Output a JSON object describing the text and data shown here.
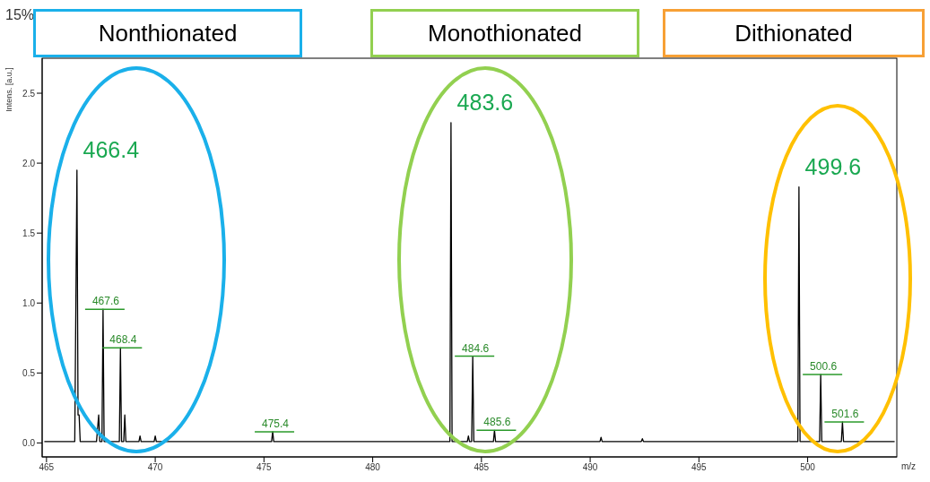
{
  "chart_data": {
    "type": "line",
    "xlabel": "m/z",
    "ylabel": "Intens. [a.u.]",
    "x": [
      464.9,
      466.3,
      466.4,
      466.45,
      466.5,
      466.55,
      467.3,
      467.4,
      467.45,
      467.55,
      467.6,
      467.65,
      468.35,
      468.4,
      468.45,
      468.55,
      468.6,
      468.65,
      469.25,
      469.3,
      469.35,
      469.95,
      470.0,
      470.05,
      475.35,
      475.4,
      475.45,
      483.55,
      483.6,
      483.65,
      484.35,
      484.4,
      484.45,
      484.55,
      484.6,
      484.65,
      485.55,
      485.6,
      485.65,
      490.45,
      490.5,
      490.55,
      492.35,
      492.4,
      492.45,
      499.55,
      499.6,
      499.65,
      500.55,
      500.6,
      500.65,
      501.55,
      501.6,
      501.65,
      504.0
    ],
    "series": [
      {
        "color": "#000000",
        "values": [
          0.01,
          0.01,
          1.95,
          0.2,
          0.2,
          0.01,
          0.01,
          0.2,
          0.01,
          0.01,
          0.955,
          0.01,
          0.01,
          0.68,
          0.01,
          0.01,
          0.2,
          0.01,
          0.01,
          0.05,
          0.01,
          0.01,
          0.05,
          0.01,
          0.01,
          0.08,
          0.01,
          0.01,
          2.29,
          0.01,
          0.01,
          0.05,
          0.01,
          0.01,
          0.62,
          0.01,
          0.01,
          0.09,
          0.01,
          0.01,
          0.04,
          0.01,
          0.01,
          0.03,
          0.01,
          0.01,
          1.83,
          0.01,
          0.01,
          0.49,
          0.01,
          0.01,
          0.15,
          0.01,
          0.01
        ]
      }
    ],
    "xlim": [
      464.8,
      504.1
    ],
    "xticks": [
      465,
      470,
      475,
      480,
      485,
      490,
      495,
      500
    ],
    "ylim": [
      -0.1,
      2.75
    ],
    "yticks": [
      {
        "value": 0,
        "label": "0.0"
      },
      {
        "value": 0.5,
        "label": "0.5"
      },
      {
        "value": 1,
        "label": "1.0"
      },
      {
        "value": 1.5,
        "label": "1.5"
      },
      {
        "value": 2,
        "label": "2.0"
      },
      {
        "value": 2.5,
        "label": "2.5"
      }
    ],
    "grid": false,
    "legend": false,
    "marker": "none",
    "line_style": "solid",
    "annotations": [
      "15%",
      "Nonthionated",
      "Monothionated",
      "Dithionated",
      {
        "text": "466.4",
        "x": 466.4,
        "y": 1.95
      },
      {
        "text": "483.6",
        "x": 483.6,
        "y": 2.29
      },
      {
        "text": "499.6",
        "x": 499.6,
        "y": 1.83
      },
      {
        "text": "467.6",
        "x": 467.6,
        "y": 0.955
      },
      {
        "text": "468.4",
        "x": 468.4,
        "y": 0.68
      },
      {
        "text": "475.4",
        "x": 475.4,
        "y": 0.08
      },
      {
        "text": "484.6",
        "x": 484.6,
        "y": 0.62
      },
      {
        "text": "485.6",
        "x": 485.6,
        "y": 0.09
      },
      {
        "text": "500.6",
        "x": 500.6,
        "y": 0.49
      },
      {
        "text": "501.6",
        "x": 501.6,
        "y": 0.15
      }
    ]
  }
}
